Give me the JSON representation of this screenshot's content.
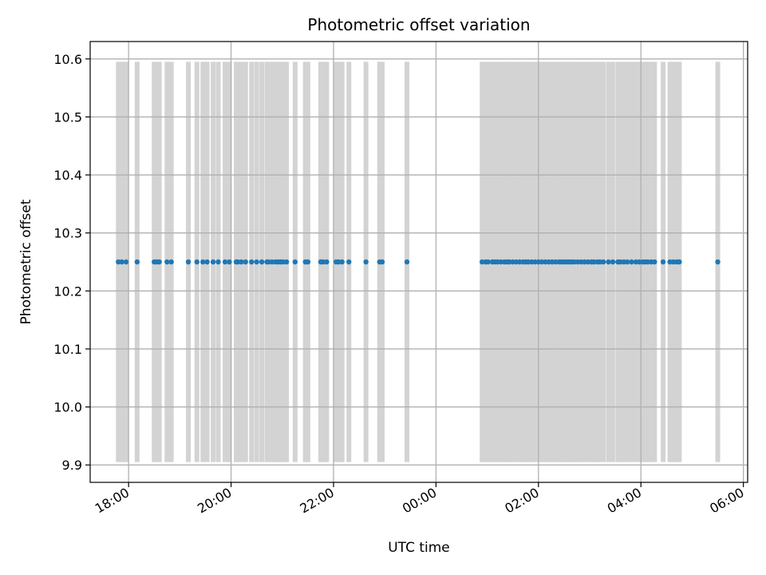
{
  "chart_data": {
    "type": "scatter",
    "title": "Photometric offset variation",
    "xlabel": "UTC time",
    "ylabel": "Photometric offset",
    "grid": true,
    "x_ticks": [
      "18:00",
      "20:00",
      "22:00",
      "00:00",
      "02:00",
      "04:00",
      "06:00"
    ],
    "y_ticks": [
      "9.9",
      "10.0",
      "10.1",
      "10.2",
      "10.3",
      "10.4",
      "10.5",
      "10.6"
    ],
    "ylim": [
      9.87,
      10.63
    ],
    "x_range_hours": [
      "17:15",
      "06:05"
    ],
    "point_color": "#1f77b4",
    "band_color": "#d3d3d3",
    "y_value": 10.25,
    "band_range": [
      9.905,
      10.595
    ],
    "times": [
      "17:48",
      "17:52",
      "17:57",
      "18:10",
      "18:30",
      "18:33",
      "18:36",
      "18:45",
      "18:50",
      "19:10",
      "19:20",
      "19:27",
      "19:32",
      "19:39",
      "19:45",
      "19:53",
      "19:58",
      "20:06",
      "20:08",
      "20:12",
      "20:17",
      "20:24",
      "20:30",
      "20:36",
      "20:42",
      "20:44",
      "20:48",
      "20:52",
      "20:55",
      "20:58",
      "21:01",
      "21:05",
      "21:15",
      "21:27",
      "21:30",
      "21:45",
      "21:48",
      "21:52",
      "22:03",
      "22:06",
      "22:10",
      "22:18",
      "22:38",
      "22:54",
      "22:57",
      "23:26",
      "00:54",
      "00:58",
      "01:01",
      "01:06",
      "01:09",
      "01:12",
      "01:16",
      "01:20",
      "01:23",
      "01:26",
      "01:30",
      "01:34",
      "01:38",
      "01:42",
      "01:45",
      "01:48",
      "01:52",
      "01:56",
      "02:00",
      "02:04",
      "02:08",
      "02:12",
      "02:16",
      "02:20",
      "02:24",
      "02:27",
      "02:30",
      "02:33",
      "02:36",
      "02:39",
      "02:42",
      "02:46",
      "02:50",
      "02:54",
      "02:58",
      "03:02",
      "03:05",
      "03:09",
      "03:12",
      "03:16",
      "03:22",
      "03:27",
      "03:33",
      "03:36",
      "03:40",
      "03:44",
      "03:49",
      "03:54",
      "03:58",
      "04:02",
      "04:05",
      "04:08",
      "04:12",
      "04:16",
      "04:26",
      "04:34",
      "04:38",
      "04:42",
      "04:45",
      "05:30"
    ]
  }
}
